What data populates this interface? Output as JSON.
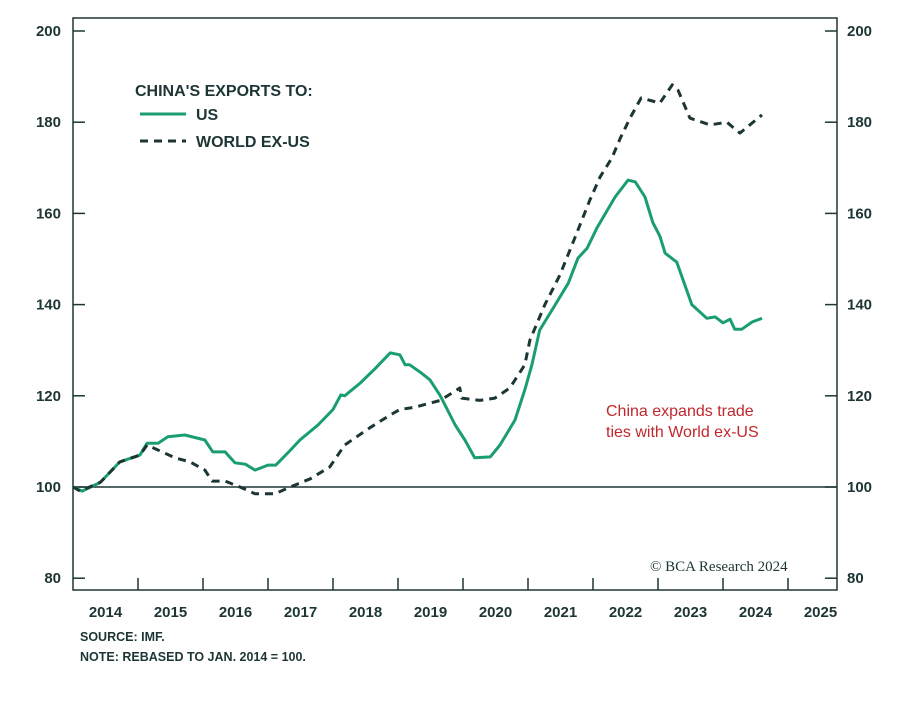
{
  "chart_data": {
    "type": "line",
    "legend_title": "CHINA'S EXPORTS TO:",
    "legend_placement": "top-left",
    "xlim": [
      2014,
      2025.75
    ],
    "ylim": [
      78,
      203
    ],
    "y_ticks": [
      80,
      100,
      120,
      140,
      160,
      180,
      200
    ],
    "x_tick_labels": [
      "2014",
      "2015",
      "2016",
      "2017",
      "2018",
      "2019",
      "2020",
      "2021",
      "2022",
      "2023",
      "2024",
      "2025"
    ],
    "reference_line": 100,
    "grid": false,
    "colors": {
      "us": "#1a9e70",
      "world": "#1d3535",
      "annotation": "#c0282d",
      "axis": "#1d3535"
    },
    "series": [
      {
        "name": "US",
        "style": "solid",
        "x": [
          2014.0,
          2014.14,
          2014.42,
          2014.72,
          2015.03,
          2015.14,
          2015.31,
          2015.46,
          2015.72,
          2016.03,
          2016.15,
          2016.34,
          2016.49,
          2016.65,
          2016.8,
          2017.0,
          2017.12,
          2017.34,
          2017.49,
          2017.77,
          2018.0,
          2018.12,
          2018.18,
          2018.42,
          2018.65,
          2018.88,
          2019.03,
          2019.11,
          2019.18,
          2019.34,
          2019.49,
          2019.65,
          2019.88,
          2020.03,
          2020.18,
          2020.42,
          2020.57,
          2020.8,
          2020.95,
          2021.06,
          2021.18,
          2021.42,
          2021.62,
          2021.77,
          2021.91,
          2022.06,
          2022.22,
          2022.34,
          2022.54,
          2022.65,
          2022.8,
          2022.92,
          2023.03,
          2023.11,
          2023.29,
          2023.52,
          2023.75,
          2023.88,
          2024.0,
          2024.11,
          2024.18,
          2024.29,
          2024.45,
          2024.6
        ],
        "values": [
          100,
          99.1,
          101,
          105.5,
          107,
          109.6,
          109.6,
          111,
          111.4,
          110.3,
          107.7,
          107.7,
          105.3,
          105,
          103.7,
          104.8,
          104.8,
          108,
          110.3,
          113.6,
          117,
          120.2,
          120,
          122.8,
          126,
          129.4,
          129,
          126.8,
          126.8,
          125.2,
          123.5,
          120,
          113.6,
          110.3,
          106.4,
          106.6,
          109.2,
          114.7,
          121.3,
          126.8,
          134.4,
          140,
          144.7,
          150.2,
          152.4,
          156.8,
          160.7,
          163.6,
          167.3,
          166.9,
          163.6,
          158,
          155,
          151.3,
          149.3,
          140,
          137,
          137.3,
          136,
          136.8,
          134.6,
          134.6,
          136.2,
          137
        ]
      },
      {
        "name": "WORLD EX-US",
        "style": "dashed",
        "x": [
          2014.0,
          2014.11,
          2014.42,
          2014.72,
          2015.03,
          2015.14,
          2015.34,
          2015.57,
          2015.8,
          2016.03,
          2016.14,
          2016.34,
          2016.57,
          2016.8,
          2017.11,
          2017.34,
          2017.65,
          2017.95,
          2018.18,
          2018.57,
          2018.88,
          2019.03,
          2019.26,
          2019.65,
          2019.95,
          2019.98,
          2020.26,
          2020.49,
          2020.72,
          2020.95,
          2021.03,
          2021.26,
          2021.49,
          2021.72,
          2021.95,
          2022.11,
          2022.29,
          2022.42,
          2022.57,
          2022.74,
          2023.03,
          2023.22,
          2023.31,
          2023.49,
          2023.8,
          2024.06,
          2024.26,
          2024.6
        ],
        "values": [
          100,
          99.1,
          101,
          105.5,
          107,
          109.2,
          107.9,
          106.4,
          105.5,
          103.7,
          101.3,
          101.3,
          100,
          98.5,
          98.5,
          100,
          101.8,
          104.4,
          109.2,
          113,
          115.8,
          117,
          117.5,
          119,
          121.7,
          119.5,
          119,
          119.5,
          121.7,
          126.8,
          132.2,
          140,
          146.5,
          154.6,
          162.9,
          168,
          172.1,
          176.5,
          180.9,
          185.3,
          184.2,
          188.2,
          187,
          180.9,
          179.4,
          180,
          177.6,
          181.6
        ]
      }
    ],
    "annotation": [
      "China expands trade",
      "ties with World ex-US"
    ],
    "copyright": "© BCA Research 2024"
  },
  "footer": {
    "source": "SOURCE: IMF.",
    "note": "NOTE: REBASED TO JAN. 2014 = 100."
  }
}
